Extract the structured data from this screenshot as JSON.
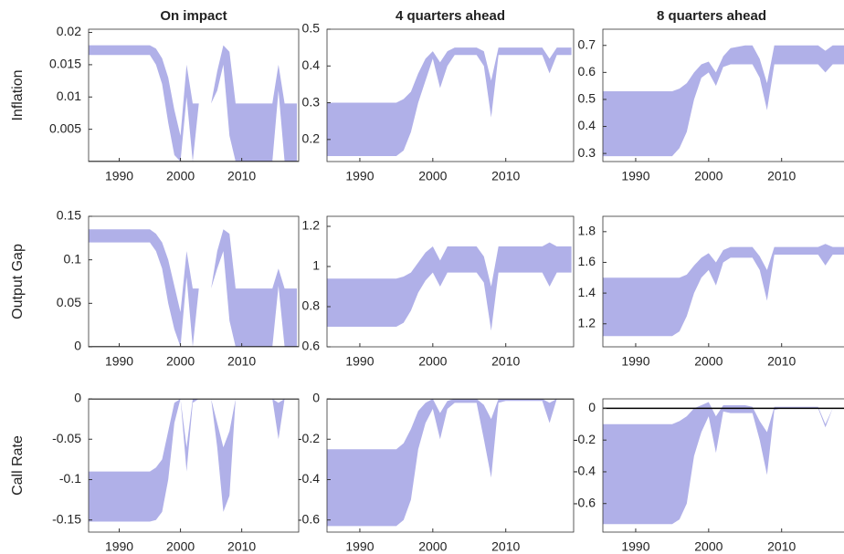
{
  "chart_data": [
    {
      "type": "band",
      "title": "On impact",
      "ylabel": "Inflation",
      "color": "#b0b0e8",
      "x": [
        1985,
        1995,
        1996,
        1997,
        1998,
        1999,
        2000,
        2001,
        2002,
        2003,
        2005,
        2006,
        2007,
        2008,
        2009,
        2010,
        2015,
        2016,
        2017,
        2019
      ],
      "upper": [
        0.018,
        0.018,
        0.0175,
        0.016,
        0.013,
        0.008,
        0.004,
        0.015,
        0.009,
        0.009,
        0.009,
        0.014,
        0.018,
        0.017,
        0.009,
        0.009,
        0.009,
        0.015,
        0.009,
        0.009
      ],
      "lower": [
        0.0165,
        0.0165,
        0.015,
        0.012,
        0.006,
        0.001,
        0,
        0.01,
        0,
        0.009,
        0.009,
        0.011,
        0.015,
        0.004,
        0,
        0,
        0,
        0.011,
        0,
        0
      ],
      "xlim": [
        1985,
        2019.3
      ],
      "xticks": [
        1990,
        2000,
        2010
      ],
      "ylim": [
        0,
        0.0205
      ],
      "yticks": [
        0.005,
        0.01,
        0.015,
        0.02
      ],
      "refline": 0
    },
    {
      "type": "band",
      "title": "4 quarters ahead",
      "color": "#b0b0e8",
      "x": [
        1985,
        1995,
        1996,
        1997,
        1998,
        1999,
        2000,
        2001,
        2002,
        2003,
        2005,
        2006,
        2007,
        2008,
        2009,
        2010,
        2015,
        2016,
        2017,
        2019
      ],
      "upper": [
        0.3,
        0.3,
        0.31,
        0.33,
        0.38,
        0.42,
        0.44,
        0.41,
        0.44,
        0.45,
        0.45,
        0.45,
        0.44,
        0.36,
        0.45,
        0.45,
        0.45,
        0.42,
        0.45,
        0.45
      ],
      "lower": [
        0.155,
        0.155,
        0.17,
        0.22,
        0.3,
        0.36,
        0.42,
        0.34,
        0.4,
        0.43,
        0.43,
        0.43,
        0.4,
        0.26,
        0.43,
        0.43,
        0.43,
        0.38,
        0.43,
        0.43
      ],
      "xlim": [
        1985.5,
        2019.3
      ],
      "xticks": [
        1990,
        2000,
        2010
      ],
      "ylim": [
        0.14,
        0.5
      ],
      "yticks": [
        0.2,
        0.3,
        0.4,
        0.5
      ]
    },
    {
      "type": "band",
      "title": "8 quarters ahead",
      "color": "#b0b0e8",
      "x": [
        1985,
        1995,
        1996,
        1997,
        1998,
        1999,
        2000,
        2001,
        2002,
        2003,
        2005,
        2006,
        2007,
        2008,
        2009,
        2010,
        2015,
        2016,
        2017,
        2019
      ],
      "upper": [
        0.53,
        0.53,
        0.54,
        0.56,
        0.6,
        0.63,
        0.64,
        0.6,
        0.66,
        0.69,
        0.7,
        0.7,
        0.65,
        0.56,
        0.7,
        0.7,
        0.7,
        0.68,
        0.7,
        0.7
      ],
      "lower": [
        0.29,
        0.29,
        0.32,
        0.38,
        0.5,
        0.58,
        0.6,
        0.55,
        0.62,
        0.63,
        0.63,
        0.63,
        0.58,
        0.46,
        0.63,
        0.63,
        0.63,
        0.6,
        0.63,
        0.63
      ],
      "xlim": [
        1985.5,
        2019.3
      ],
      "xticks": [
        1990,
        2000,
        2010
      ],
      "ylim": [
        0.27,
        0.76
      ],
      "yticks": [
        0.3,
        0.4,
        0.5,
        0.6,
        0.7
      ]
    },
    {
      "type": "band",
      "ylabel": "Output Gap",
      "color": "#b0b0e8",
      "x": [
        1985,
        1995,
        1996,
        1997,
        1998,
        1999,
        2000,
        2001,
        2002,
        2003,
        2005,
        2006,
        2007,
        2008,
        2009,
        2010,
        2015,
        2016,
        2017,
        2019
      ],
      "upper": [
        0.135,
        0.135,
        0.13,
        0.12,
        0.1,
        0.07,
        0.04,
        0.11,
        0.067,
        0.067,
        0.067,
        0.11,
        0.135,
        0.13,
        0.067,
        0.067,
        0.067,
        0.09,
        0.067,
        0.067
      ],
      "lower": [
        0.12,
        0.12,
        0.11,
        0.09,
        0.05,
        0.02,
        0,
        0.08,
        0,
        0.067,
        0.067,
        0.09,
        0.11,
        0.03,
        0,
        0,
        0,
        0.07,
        0,
        0
      ],
      "xlim": [
        1985,
        2019.3
      ],
      "xticks": [
        1990,
        2000,
        2010
      ],
      "ylim": [
        0,
        0.15
      ],
      "yticks": [
        0,
        0.05,
        0.1,
        0.15
      ],
      "refline": 0
    },
    {
      "type": "band",
      "color": "#b0b0e8",
      "x": [
        1985,
        1995,
        1996,
        1997,
        1998,
        1999,
        2000,
        2001,
        2002,
        2003,
        2005,
        2006,
        2007,
        2008,
        2009,
        2010,
        2015,
        2016,
        2017,
        2019
      ],
      "upper": [
        0.94,
        0.94,
        0.95,
        0.97,
        1.02,
        1.07,
        1.1,
        1.03,
        1.1,
        1.1,
        1.1,
        1.1,
        1.05,
        0.9,
        1.1,
        1.1,
        1.1,
        1.12,
        1.1,
        1.1
      ],
      "lower": [
        0.7,
        0.7,
        0.72,
        0.78,
        0.87,
        0.93,
        0.97,
        0.9,
        0.97,
        0.97,
        0.97,
        0.97,
        0.92,
        0.68,
        0.97,
        0.97,
        0.97,
        0.9,
        0.97,
        0.97
      ],
      "xlim": [
        1985.5,
        2019.3
      ],
      "xticks": [
        1990,
        2000,
        2010
      ],
      "ylim": [
        0.6,
        1.25
      ],
      "yticks": [
        0.6,
        0.8,
        1,
        1.2
      ]
    },
    {
      "type": "band",
      "color": "#b0b0e8",
      "x": [
        1985,
        1995,
        1996,
        1997,
        1998,
        1999,
        2000,
        2001,
        2002,
        2003,
        2005,
        2006,
        2007,
        2008,
        2009,
        2010,
        2015,
        2016,
        2017,
        2019
      ],
      "upper": [
        1.5,
        1.5,
        1.5,
        1.52,
        1.58,
        1.63,
        1.66,
        1.6,
        1.68,
        1.7,
        1.7,
        1.7,
        1.64,
        1.55,
        1.7,
        1.7,
        1.7,
        1.72,
        1.7,
        1.7
      ],
      "lower": [
        1.12,
        1.12,
        1.15,
        1.25,
        1.4,
        1.5,
        1.55,
        1.45,
        1.6,
        1.63,
        1.63,
        1.63,
        1.55,
        1.35,
        1.65,
        1.65,
        1.65,
        1.58,
        1.65,
        1.65
      ],
      "xlim": [
        1985.5,
        2019.3
      ],
      "xticks": [
        1990,
        2000,
        2010
      ],
      "ylim": [
        1.05,
        1.9
      ],
      "yticks": [
        1.2,
        1.4,
        1.6,
        1.8
      ]
    },
    {
      "type": "band",
      "ylabel": "Call Rate",
      "color": "#b0b0e8",
      "x": [
        1985,
        1995,
        1996,
        1997,
        1998,
        1999,
        2000,
        2001,
        2002,
        2003,
        2005,
        2006,
        2007,
        2008,
        2009,
        2010,
        2015,
        2016,
        2017,
        2019
      ],
      "upper": [
        -0.09,
        -0.09,
        -0.085,
        -0.075,
        -0.04,
        -0.005,
        0,
        -0.06,
        0,
        0,
        0,
        -0.03,
        -0.06,
        -0.04,
        0,
        0,
        0,
        -0.005,
        0,
        0
      ],
      "lower": [
        -0.152,
        -0.152,
        -0.15,
        -0.14,
        -0.1,
        -0.03,
        0,
        -0.09,
        -0.005,
        0,
        0,
        -0.06,
        -0.14,
        -0.12,
        0,
        0,
        0,
        -0.05,
        0,
        0
      ],
      "xlim": [
        1985,
        2019.3
      ],
      "xticks": [
        1990,
        2000,
        2010
      ],
      "ylim": [
        -0.165,
        0
      ],
      "yticks": [
        -0.15,
        -0.1,
        -0.05,
        0
      ],
      "refline": 0
    },
    {
      "type": "band",
      "color": "#b0b0e8",
      "x": [
        1985,
        1995,
        1996,
        1997,
        1998,
        1999,
        2000,
        2001,
        2002,
        2003,
        2005,
        2006,
        2007,
        2008,
        2009,
        2010,
        2015,
        2016,
        2017,
        2019
      ],
      "upper": [
        -0.25,
        -0.25,
        -0.22,
        -0.15,
        -0.06,
        -0.02,
        0,
        -0.07,
        -0.01,
        0,
        0,
        0,
        -0.03,
        -0.1,
        0,
        0,
        0,
        -0.02,
        0,
        0
      ],
      "lower": [
        -0.63,
        -0.63,
        -0.6,
        -0.5,
        -0.25,
        -0.12,
        -0.05,
        -0.2,
        -0.05,
        -0.02,
        -0.02,
        -0.02,
        -0.2,
        -0.39,
        -0.02,
        -0.01,
        -0.01,
        -0.12,
        0,
        0
      ],
      "xlim": [
        1985.5,
        2019.3
      ],
      "xticks": [
        1990,
        2000,
        2010
      ],
      "ylim": [
        -0.66,
        0
      ],
      "yticks": [
        -0.6,
        -0.4,
        -0.2,
        0
      ],
      "refline": 0
    },
    {
      "type": "band",
      "color": "#b0b0e8",
      "x": [
        1985,
        1995,
        1996,
        1997,
        1998,
        1999,
        2000,
        2001,
        2002,
        2003,
        2005,
        2006,
        2007,
        2008,
        2009,
        2010,
        2015,
        2016,
        2017,
        2019
      ],
      "upper": [
        -0.1,
        -0.1,
        -0.08,
        -0.05,
        0,
        0.02,
        0.04,
        -0.05,
        0.02,
        0.02,
        0.02,
        0.01,
        -0.08,
        -0.15,
        0.01,
        0.01,
        0.01,
        -0.1,
        0,
        0
      ],
      "lower": [
        -0.73,
        -0.73,
        -0.7,
        -0.6,
        -0.3,
        -0.15,
        -0.05,
        -0.28,
        -0.02,
        -0.03,
        -0.03,
        -0.03,
        -0.2,
        -0.42,
        -0.01,
        0,
        0,
        -0.12,
        0,
        0
      ],
      "xlim": [
        1985.5,
        2019.3
      ],
      "xticks": [
        1990,
        2000,
        2010
      ],
      "ylim": [
        -0.78,
        0.06
      ],
      "yticks": [
        -0.6,
        -0.4,
        -0.2,
        0
      ],
      "refline": 0
    }
  ]
}
